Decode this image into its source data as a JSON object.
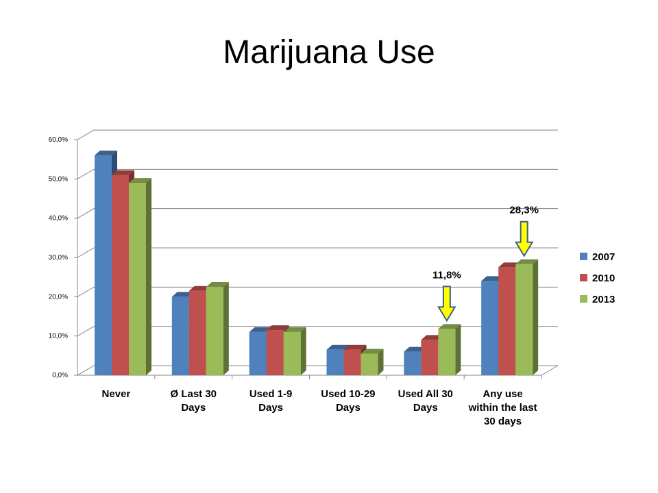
{
  "chart_data": {
    "type": "bar3d",
    "title": "Marijuana Use",
    "categories": [
      "Never",
      "Ø Last 30 Days",
      "Used 1-9 Days",
      "Used 10-29 Days",
      "Used All 30 Days",
      "Any use within the last 30 days"
    ],
    "series": [
      {
        "name": "2007",
        "color": "#4f81bd",
        "values": [
          56,
          20,
          11,
          6.5,
          6,
          24
        ]
      },
      {
        "name": "2010",
        "color": "#c0504d",
        "values": [
          51,
          21.5,
          11.5,
          6.5,
          9,
          27.5
        ]
      },
      {
        "name": "2013",
        "color": "#9bbb59",
        "values": [
          49,
          22.5,
          11,
          5.5,
          11.8,
          28.3
        ],
        "value_labels": [
          null,
          null,
          null,
          null,
          "11,8%",
          "28,3%"
        ]
      }
    ],
    "ylim": [
      0,
      60
    ],
    "yticks": [
      {
        "value": 0,
        "label": "0,0%"
      },
      {
        "value": 10,
        "label": "10,0%"
      },
      {
        "value": 20,
        "label": "20,0%"
      },
      {
        "value": 30,
        "label": "30,0%"
      },
      {
        "value": 40,
        "label": "40,0%"
      },
      {
        "value": 50,
        "label": "50,0%"
      },
      {
        "value": 60,
        "label": "60,0%"
      }
    ],
    "grid": true
  }
}
